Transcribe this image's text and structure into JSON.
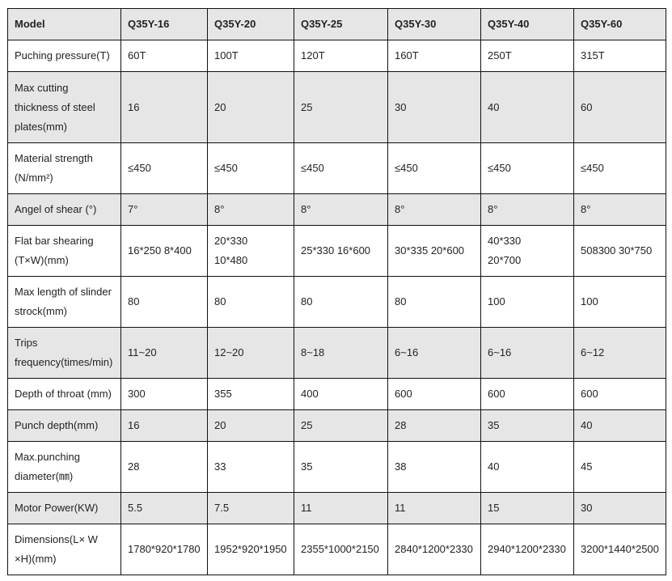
{
  "header": [
    "Model",
    "Q35Y-16",
    "Q35Y-20",
    "Q35Y-25",
    "Q35Y-30",
    "Q35Y-40",
    "Q35Y-60"
  ],
  "rows": [
    {
      "label": "Puching pressure(T)",
      "values": [
        "60T",
        "100T",
        "120T",
        "160T",
        "250T",
        "315T"
      ]
    },
    {
      "label": "Max cutting\nthickness of steel\nplates(mm)",
      "values": [
        "16",
        "20",
        "25",
        "30",
        "40",
        "60"
      ]
    },
    {
      "label": "Material strength\n(N/mm²)",
      "values": [
        "≤450",
        "≤450",
        "≤450",
        "≤450",
        "≤450",
        "≤450"
      ]
    },
    {
      "label": "Angel of shear (°)",
      "values": [
        "7°",
        "8°",
        "8°",
        "8°",
        "8°",
        "8°"
      ]
    },
    {
      "label": "Flat bar shearing\n(T×W)(mm)",
      "values": [
        "16*250    8*400",
        "20*330\n  10*480",
        "25*330   16*600",
        "30*335    20*600",
        "40*330\n    20*700",
        "508300 30*750"
      ]
    },
    {
      "label": "Max length of slinder\nstrock(mm)",
      "values": [
        "80",
        "80",
        "80",
        "80",
        "100",
        "100"
      ]
    },
    {
      "label": "Trips\nfrequency(times/min)",
      "values": [
        "11~20",
        "12~20",
        "8~18",
        "6~16",
        "6~16",
        "6~12"
      ]
    },
    {
      "label": "Depth of throat (mm)",
      "values": [
        "300",
        "355",
        "400",
        "600",
        "600",
        "600"
      ]
    },
    {
      "label": "Punch depth(mm)",
      "values": [
        "16",
        "20",
        "25",
        "28",
        "35",
        "40"
      ]
    },
    {
      "label": "Max.punching\ndiameter(㎜)",
      "values": [
        "28",
        "33",
        "35",
        "38",
        "40",
        "45"
      ]
    },
    {
      "label": "Motor Power(KW)",
      "values": [
        "5.5",
        "7.5",
        "11",
        "11",
        "15",
        "30"
      ]
    },
    {
      "label": "Dimensions(L× W\n×H)(mm)",
      "values": [
        "1780*920*1780",
        "1952*920*1950",
        "2355*1000*2150",
        "2840*1200*2330",
        "2940*1200*2330",
        "3200*1440*2500"
      ]
    }
  ],
  "colors": {
    "shaded_row": "#e6e6e6",
    "border": "#111111"
  }
}
